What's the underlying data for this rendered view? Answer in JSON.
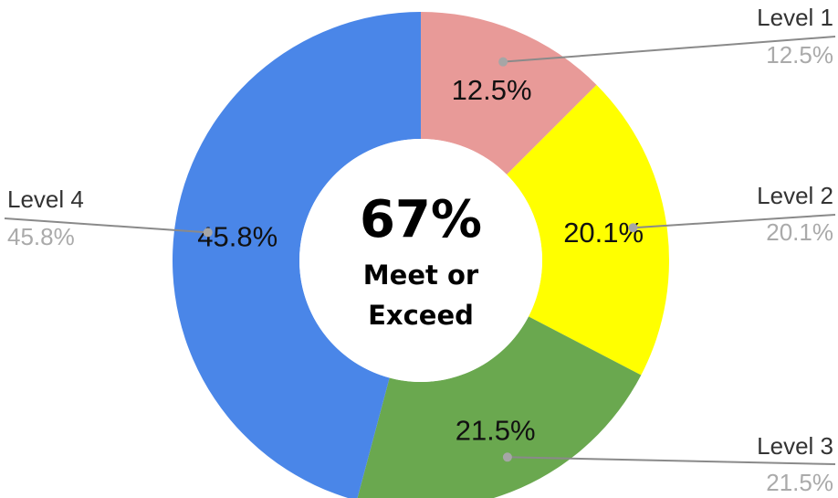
{
  "chart_data": {
    "type": "pie",
    "donut": true,
    "categories": [
      "Level 1",
      "Level 2",
      "Level 3",
      "Level 4"
    ],
    "values": [
      12.5,
      20.1,
      21.5,
      45.8
    ],
    "value_labels": [
      "12.5%",
      "20.1%",
      "21.5%",
      "45.8%"
    ],
    "colors": [
      "#e89a98",
      "#ffff00",
      "#6aa84f",
      "#4a86e8"
    ],
    "center_text": {
      "value": "67%",
      "line1": "Meet or",
      "line2": "Exceed"
    },
    "legend": "labeled leader lines",
    "start_angle": "12 o'clock, clockwise"
  }
}
